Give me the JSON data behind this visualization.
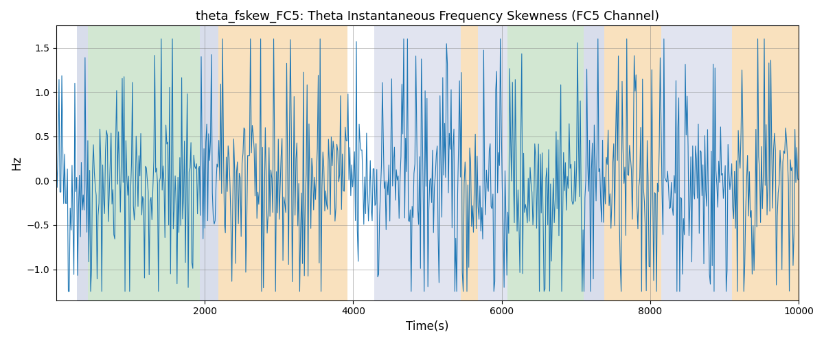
{
  "title": "theta_fskew_FC5: Theta Instantaneous Frequency Skewness (FC5 Channel)",
  "xlabel": "Time(s)",
  "ylabel": "Hz",
  "xlim": [
    0,
    10000
  ],
  "ylim": [
    -1.35,
    1.75
  ],
  "line_color": "#1f77b4",
  "line_width": 0.8,
  "bg_regions": [
    {
      "xstart": 280,
      "xend": 430,
      "color": "#aab4d4",
      "alpha": 0.45
    },
    {
      "xstart": 430,
      "xend": 1930,
      "color": "#90c490",
      "alpha": 0.4
    },
    {
      "xstart": 1930,
      "xend": 2180,
      "color": "#aab4d4",
      "alpha": 0.45
    },
    {
      "xstart": 2180,
      "xend": 3920,
      "color": "#f5c98a",
      "alpha": 0.55
    },
    {
      "xstart": 4280,
      "xend": 5450,
      "color": "#aab4d4",
      "alpha": 0.35
    },
    {
      "xstart": 5450,
      "xend": 5680,
      "color": "#f5c98a",
      "alpha": 0.55
    },
    {
      "xstart": 5680,
      "xend": 6080,
      "color": "#aab4d4",
      "alpha": 0.35
    },
    {
      "xstart": 6080,
      "xend": 7100,
      "color": "#90c490",
      "alpha": 0.4
    },
    {
      "xstart": 7100,
      "xend": 7380,
      "color": "#aab4d4",
      "alpha": 0.45
    },
    {
      "xstart": 7380,
      "xend": 8150,
      "color": "#f5c98a",
      "alpha": 0.55
    },
    {
      "xstart": 8150,
      "xend": 9100,
      "color": "#aab4d4",
      "alpha": 0.35
    },
    {
      "xstart": 9100,
      "xend": 10000,
      "color": "#f5c98a",
      "alpha": 0.55
    }
  ],
  "xticks": [
    2000,
    4000,
    6000,
    8000,
    10000
  ],
  "yticks": [
    -1.0,
    -0.5,
    0.0,
    0.5,
    1.0,
    1.5
  ],
  "grid": true,
  "seed": 42,
  "n_points": 800
}
